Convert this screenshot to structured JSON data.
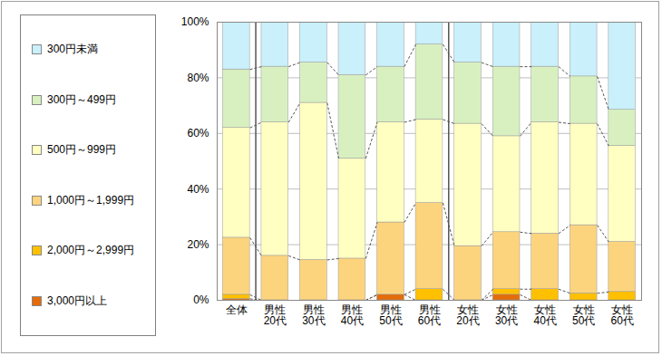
{
  "chart_data": {
    "type": "bar",
    "stacked": true,
    "grid": true,
    "legend": "left",
    "categories": [
      "全体",
      "男性\n20代",
      "男性\n30代",
      "男性\n40代",
      "男性\n50代",
      "男性\n60代",
      "女性\n20代",
      "女性\n30代",
      "女性\n40代",
      "女性\n50代",
      "女性\n60代"
    ],
    "series": [
      {
        "name": "300円未満",
        "color": "#c9f0fb",
        "values": [
          17,
          16,
          14.5,
          19,
          16,
          8,
          14.5,
          16,
          16,
          19.5,
          31.5
        ]
      },
      {
        "name": "300円～499円",
        "color": "#d8f0c0",
        "values": [
          21,
          20,
          14.5,
          30,
          20,
          27,
          22,
          25,
          20,
          17,
          13
        ]
      },
      {
        "name": "500円～999円",
        "color": "#ffffc2",
        "values": [
          39.5,
          48,
          56.5,
          36,
          36,
          30,
          44,
          34.5,
          40,
          36.5,
          34.5
        ]
      },
      {
        "name": "1,000円～1,999円",
        "color": "#fcd47e",
        "values": [
          20.5,
          16,
          14.5,
          15,
          26,
          31,
          19.5,
          20.5,
          20,
          24.5,
          18
        ]
      },
      {
        "name": "2,000円～2,999円",
        "color": "#ffc000",
        "values": [
          1.5,
          0,
          0,
          0,
          0,
          4,
          0,
          2,
          4,
          2.5,
          3
        ]
      },
      {
        "name": "3,000円以上",
        "color": "#e46c0a",
        "values": [
          0.5,
          0,
          0,
          0,
          2,
          0,
          0,
          2,
          0,
          0,
          0
        ]
      }
    ],
    "ylim": [
      0,
      100
    ],
    "yticks": [
      {
        "value": 0,
        "label": "0%"
      },
      {
        "value": 20,
        "label": "20%"
      },
      {
        "value": 40,
        "label": "40%"
      },
      {
        "value": 60,
        "label": "60%"
      },
      {
        "value": 80,
        "label": "80%"
      },
      {
        "value": 100,
        "label": "100%"
      }
    ]
  }
}
